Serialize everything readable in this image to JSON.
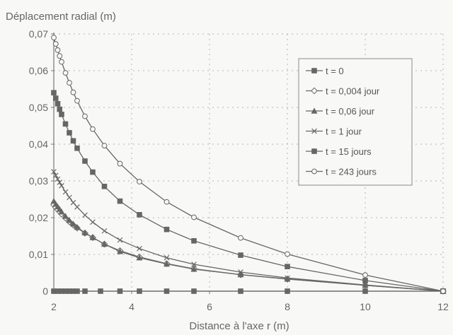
{
  "chart_data": {
    "type": "line",
    "title": "",
    "ylabel": "Déplacement radial (m)",
    "xlabel": "Distance à l'axe  r (m)",
    "xlim": [
      2,
      12
    ],
    "ylim": [
      0,
      0.07
    ],
    "xticks": [
      2,
      4,
      6,
      8,
      10,
      12
    ],
    "xtick_labels": [
      "2",
      "4",
      "6",
      "8",
      "10",
      "12"
    ],
    "yticks": [
      0,
      0.01,
      0.02,
      0.03,
      0.04,
      0.05,
      0.06,
      0.07
    ],
    "ytick_labels": [
      "0",
      "0,01",
      "0,02",
      "0,03",
      "0,04",
      "0,05",
      "0,06",
      "0,07"
    ],
    "grid": true,
    "legend_position": "right",
    "colors": {
      "line": "#666666",
      "grid": "#b5b5b5",
      "axis": "#777777",
      "background": "#f8f8f6"
    },
    "series": [
      {
        "name": "t = 0",
        "marker": "square-filled",
        "x": [
          2,
          2.1,
          2.2,
          2.3,
          2.4,
          2.5,
          2.6,
          2.8,
          3.2,
          3.7,
          4.2,
          4.9,
          5.6,
          6.8,
          8,
          10,
          12
        ],
        "y": [
          0,
          0,
          0,
          0,
          0,
          0,
          0,
          0,
          0,
          0,
          0,
          0,
          0,
          0,
          0,
          0,
          0
        ]
      },
      {
        "name": "t = 0,004 jour",
        "marker": "diamond-open",
        "x": [
          2,
          2.05,
          2.1,
          2.15,
          2.2,
          2.3,
          2.4,
          2.5,
          2.6,
          2.8,
          3.0,
          3.3,
          3.7,
          4.2,
          4.9,
          5.6,
          6.8,
          8,
          10,
          12
        ],
        "y": [
          0.0235,
          0.0228,
          0.0222,
          0.0216,
          0.021,
          0.0199,
          0.0189,
          0.018,
          0.0172,
          0.0158,
          0.0146,
          0.0128,
          0.011,
          0.0093,
          0.0075,
          0.0061,
          0.0045,
          0.0033,
          0.0016,
          0
        ]
      },
      {
        "name": "t = 0,06 jour",
        "marker": "triangle-filled",
        "x": [
          2,
          2.05,
          2.1,
          2.15,
          2.2,
          2.3,
          2.4,
          2.5,
          2.6,
          2.8,
          3.0,
          3.3,
          3.7,
          4.2,
          4.9,
          5.6,
          6.8,
          8,
          10,
          12
        ],
        "y": [
          0.0245,
          0.0237,
          0.023,
          0.0223,
          0.0216,
          0.0204,
          0.0193,
          0.0183,
          0.0174,
          0.0159,
          0.0146,
          0.0128,
          0.0108,
          0.0091,
          0.0074,
          0.006,
          0.0045,
          0.0033,
          0.0016,
          0
        ]
      },
      {
        "name": "t = 1 jour",
        "marker": "x",
        "x": [
          2,
          2.05,
          2.1,
          2.15,
          2.2,
          2.3,
          2.4,
          2.5,
          2.6,
          2.8,
          3.0,
          3.3,
          3.7,
          4.2,
          4.9,
          5.6,
          6.8,
          8,
          10,
          12
        ],
        "y": [
          0.0325,
          0.0315,
          0.0305,
          0.0296,
          0.0287,
          0.027,
          0.0255,
          0.0241,
          0.0229,
          0.0207,
          0.0188,
          0.0164,
          0.0139,
          0.0116,
          0.0091,
          0.0073,
          0.0052,
          0.0036,
          0.0017,
          0
        ]
      },
      {
        "name": "t = 15 jours",
        "marker": "square-filled",
        "x": [
          2,
          2.05,
          2.1,
          2.15,
          2.2,
          2.3,
          2.4,
          2.5,
          2.6,
          2.8,
          3.0,
          3.3,
          3.7,
          4.2,
          4.9,
          5.6,
          6.8,
          8,
          10,
          12
        ],
        "y": [
          0.054,
          0.0525,
          0.051,
          0.0495,
          0.0481,
          0.0455,
          0.0431,
          0.0409,
          0.0389,
          0.0354,
          0.0324,
          0.0285,
          0.0245,
          0.0208,
          0.0168,
          0.0137,
          0.0098,
          0.0067,
          0.0029,
          0
        ]
      },
      {
        "name": "t = 243 jours",
        "marker": "circle-open",
        "x": [
          2,
          2.05,
          2.1,
          2.15,
          2.2,
          2.3,
          2.4,
          2.5,
          2.6,
          2.8,
          3.0,
          3.3,
          3.7,
          4.2,
          4.9,
          5.6,
          6.8,
          8,
          10,
          12
        ],
        "y": [
          0.069,
          0.0673,
          0.0656,
          0.064,
          0.0624,
          0.0594,
          0.0567,
          0.0541,
          0.0518,
          0.0476,
          0.0441,
          0.0396,
          0.0347,
          0.0298,
          0.0243,
          0.0201,
          0.0145,
          0.0101,
          0.0044,
          0
        ]
      }
    ]
  }
}
